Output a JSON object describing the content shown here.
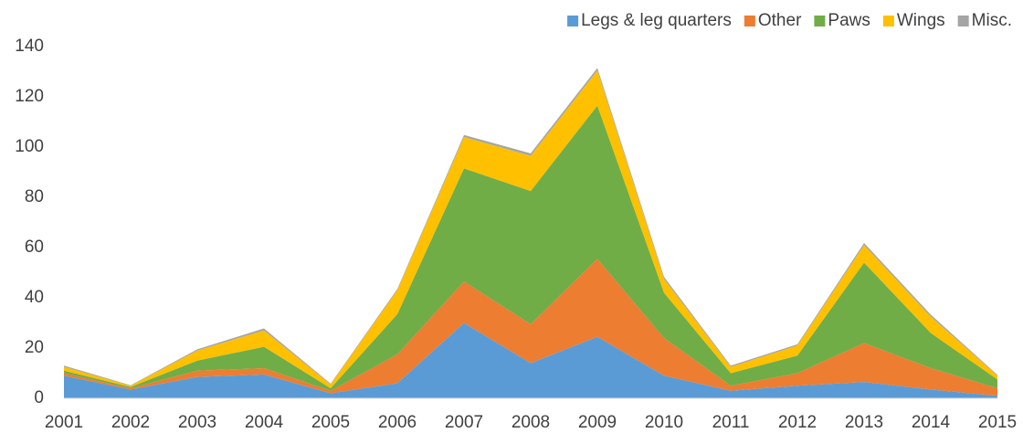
{
  "chart_data": {
    "type": "stacked_area",
    "categories": [
      "2001",
      "2002",
      "2003",
      "2004",
      "2005",
      "2006",
      "2007",
      "2008",
      "2009",
      "2010",
      "2011",
      "2012",
      "2013",
      "2014",
      "2015"
    ],
    "series": [
      {
        "name": "Legs & leg quarters",
        "color": "#5b9bd5",
        "values": [
          9,
          3.5,
          8.5,
          9.5,
          2,
          6,
          30,
          14,
          24.5,
          9,
          3,
          5,
          6.5,
          3.5,
          1
        ]
      },
      {
        "name": "Other",
        "color": "#ed7d31",
        "values": [
          1,
          0.5,
          2.5,
          2.5,
          1,
          11.5,
          16.5,
          15.5,
          31,
          15,
          2,
          5,
          15.5,
          8.5,
          3
        ]
      },
      {
        "name": "Paws",
        "color": "#70ad47",
        "values": [
          1,
          0.5,
          4,
          8.5,
          1,
          16,
          45,
          53,
          61,
          18,
          5,
          7,
          32,
          14,
          3.5
        ]
      },
      {
        "name": "Wings",
        "color": "#ffc000",
        "values": [
          1.5,
          0.5,
          4,
          6.5,
          1.5,
          9.5,
          12.5,
          14,
          14,
          5.5,
          2.5,
          4,
          7,
          6.5,
          1.5
        ]
      },
      {
        "name": "Misc.",
        "color": "#a5a5a5",
        "values": [
          0.5,
          0.2,
          0.5,
          0.8,
          0.3,
          0.5,
          0.8,
          1,
          1,
          0.8,
          0.5,
          0.5,
          0.8,
          0.8,
          0.3
        ]
      }
    ],
    "ylim": [
      0,
      140
    ],
    "yticks": [
      0,
      20,
      40,
      60,
      80,
      100,
      120,
      140
    ],
    "grid": false,
    "legend": "top-right"
  }
}
